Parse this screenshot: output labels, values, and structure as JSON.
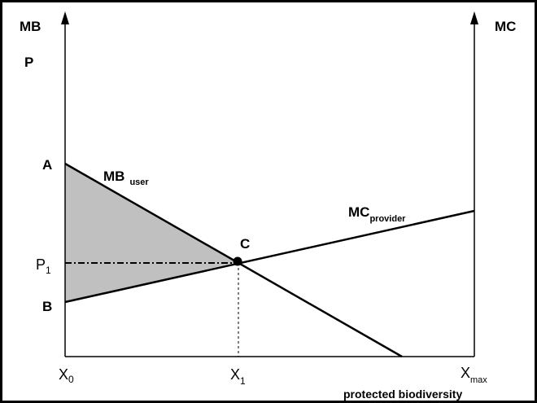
{
  "labels": {
    "left_axis_top": "MB",
    "left_axis_second": "P",
    "right_axis": "MC",
    "point_a": "A",
    "point_b": "B",
    "point_c": "C",
    "price_main": "P",
    "price_sub": "1",
    "mb_main": "MB",
    "mb_sub": "user",
    "mc_main": "MC",
    "mc_sub": "provider",
    "x0_main": "X",
    "x0_sub": "0",
    "x1_main": "X",
    "x1_sub": "1",
    "xmax_main": "X",
    "xmax_sub": "max",
    "x_axis_title": "protected biodiversity"
  },
  "colors": {
    "surplus_fill": "#c0c0c0",
    "line": "#000000"
  }
}
